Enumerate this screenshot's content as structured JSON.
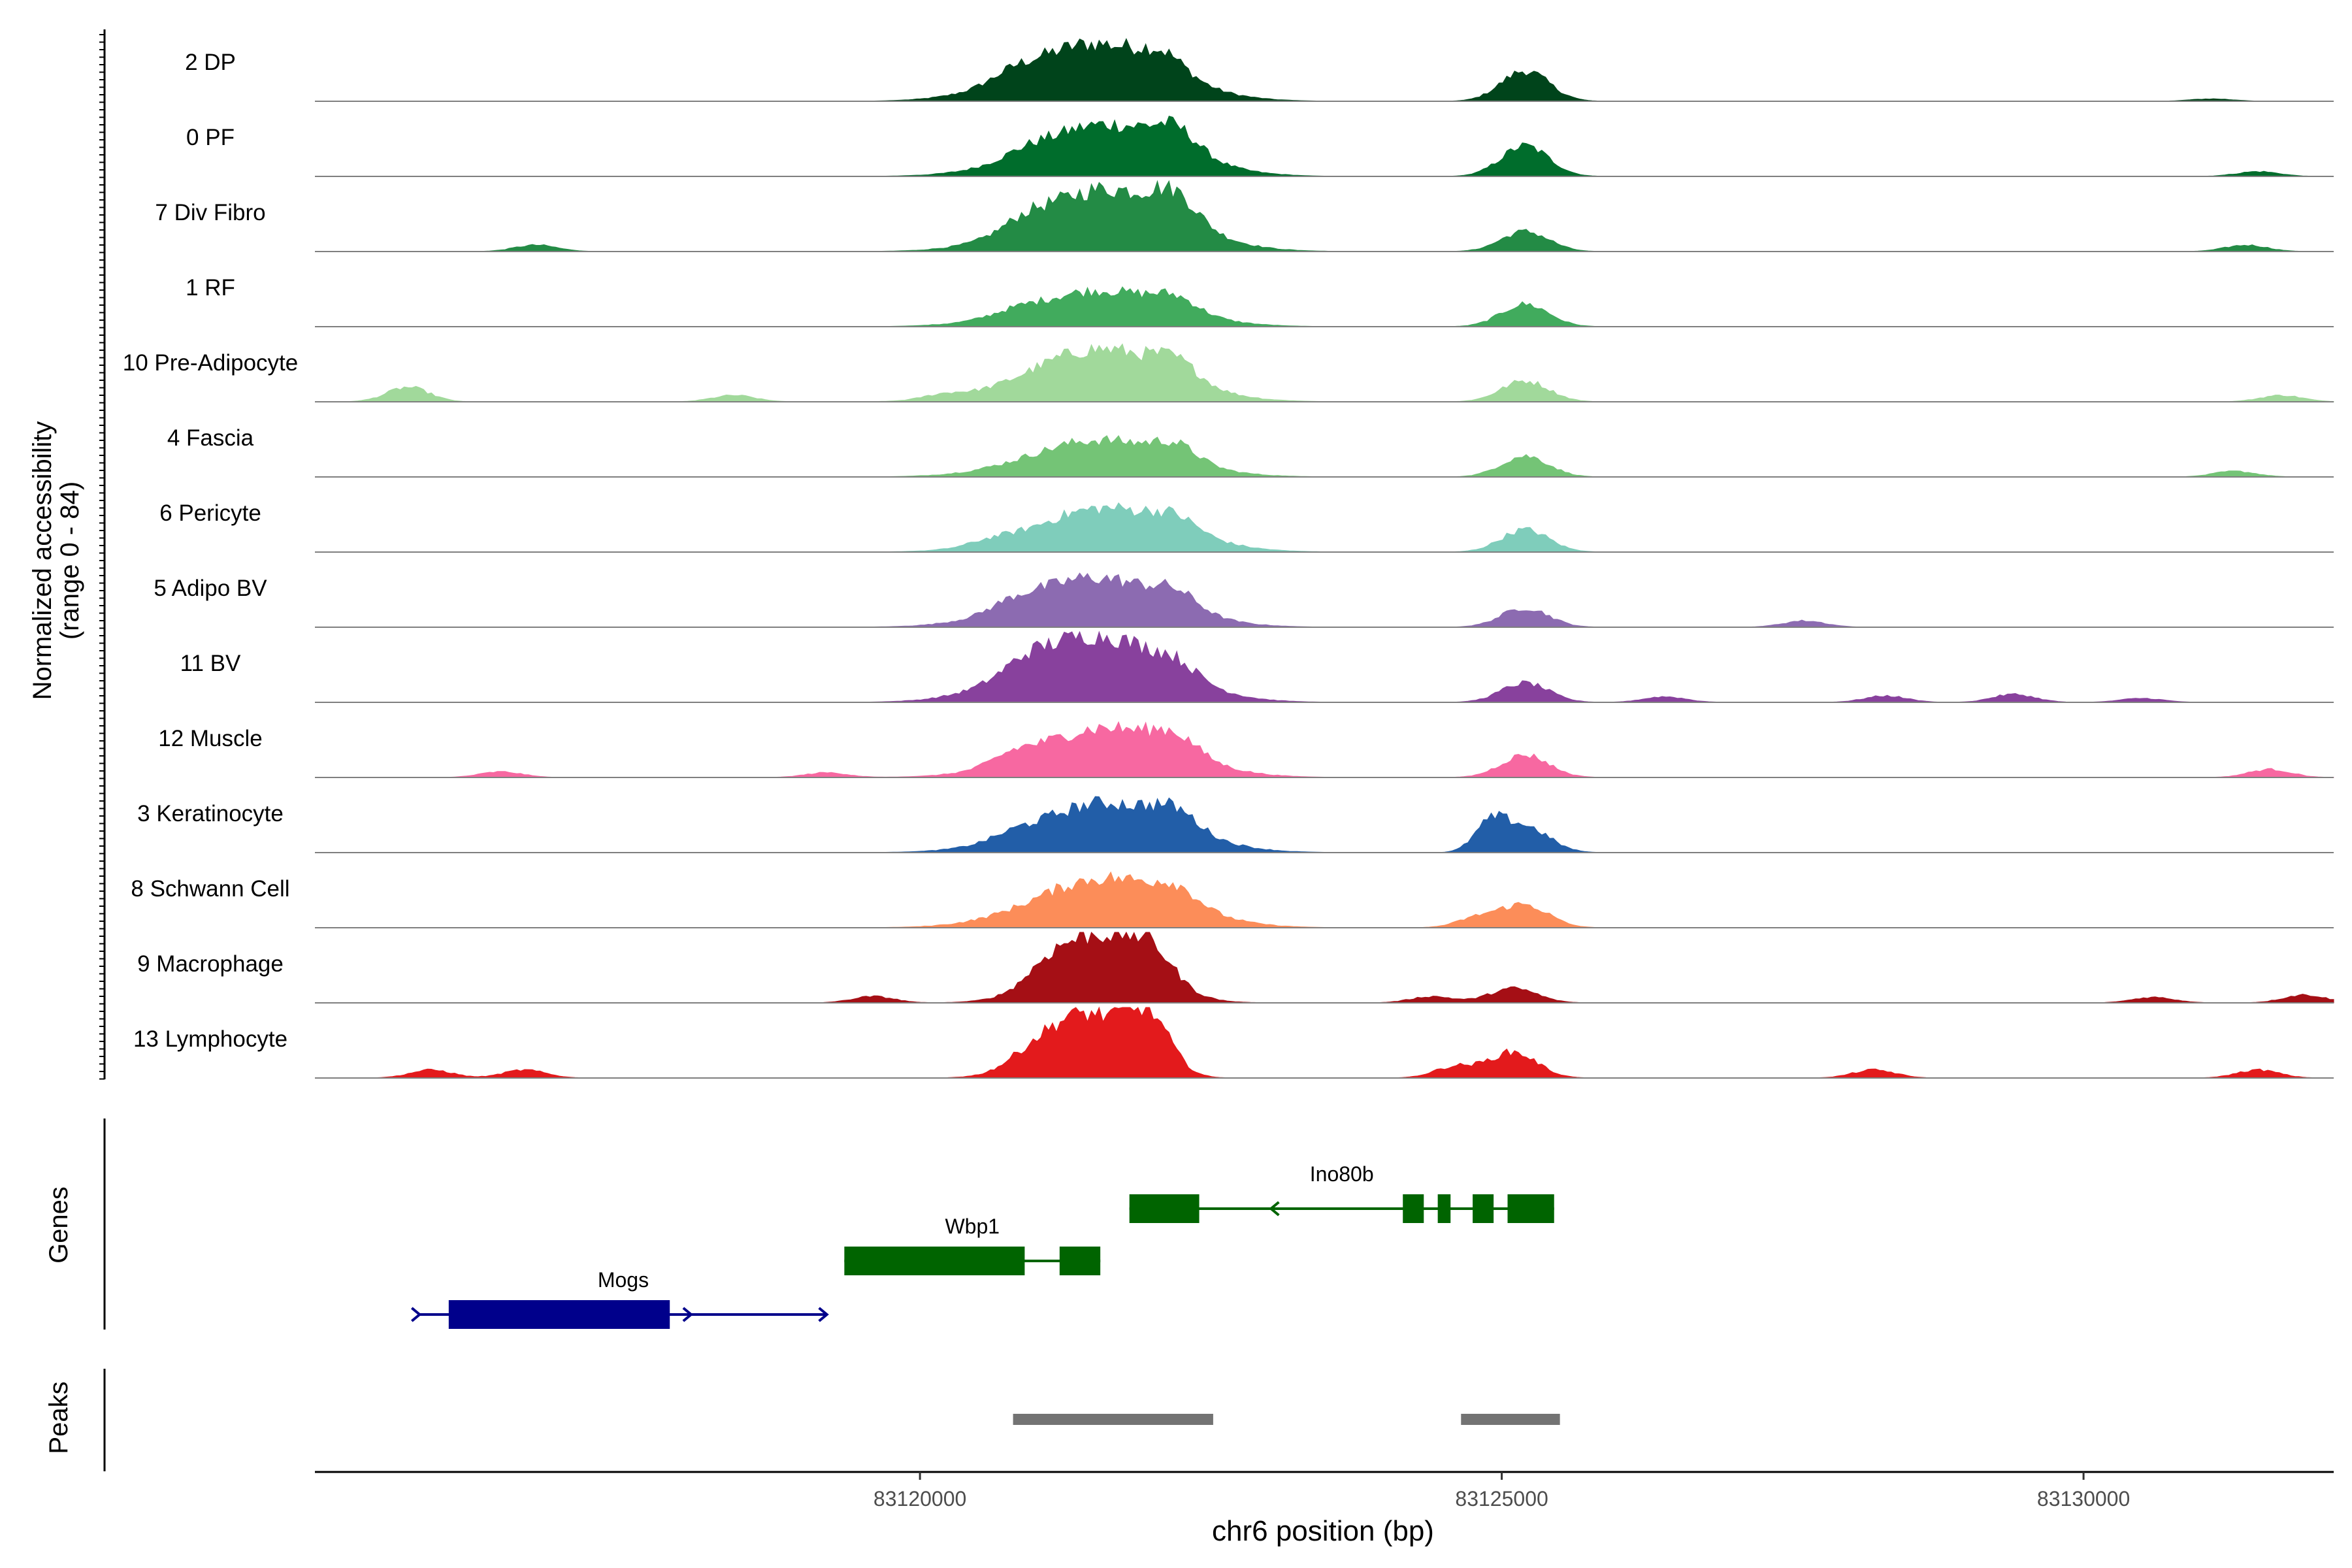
{
  "chart_data": {
    "type": "area",
    "title": "",
    "xlabel": "chr6 position (bp)",
    "ylabel": "Normalized accessibility",
    "ylabel_range": "(range 0 - 84)",
    "xlim": [
      83114800,
      83132150
    ],
    "ylim": [
      0,
      84
    ],
    "x_ticks": [
      {
        "value": 83120000,
        "label": "83120000"
      },
      {
        "value": 83125000,
        "label": "83125000"
      },
      {
        "value": 83130000,
        "label": "83130000"
      }
    ],
    "tracks": [
      {
        "name": "2 DP",
        "color": "#00441b",
        "peaks": [
          [
            83121500,
            72,
            1300
          ],
          [
            83125200,
            38,
            450
          ],
          [
            83122100,
            20,
            400
          ]
        ],
        "minor": [
          [
            83120800,
            8,
            400
          ],
          [
            83131100,
            3,
            400
          ]
        ]
      },
      {
        "name": "0 PF",
        "color": "#006d2c",
        "peaks": [
          [
            83121600,
            65,
            1300
          ],
          [
            83125200,
            38,
            450
          ],
          [
            83122200,
            25,
            400
          ]
        ],
        "minor": [
          [
            83120900,
            6,
            400
          ],
          [
            83131500,
            6,
            400
          ]
        ]
      },
      {
        "name": "7 Div Fibro",
        "color": "#238b45",
        "peaks": [
          [
            83121600,
            78,
            1300
          ],
          [
            83125200,
            25,
            450
          ],
          [
            83122200,
            30,
            400
          ]
        ],
        "minor": [
          [
            83116700,
            8,
            400
          ],
          [
            83120900,
            10,
            400
          ],
          [
            83131400,
            8,
            400
          ]
        ]
      },
      {
        "name": "1 RF",
        "color": "#41ab5d",
        "peaks": [
          [
            83121550,
            45,
            1300
          ],
          [
            83125200,
            28,
            450
          ],
          [
            83122200,
            15,
            400
          ]
        ],
        "minor": [
          [
            83120800,
            4,
            400
          ]
        ]
      },
      {
        "name": "10 Pre-Adipocyte",
        "color": "#a1d99b",
        "peaks": [
          [
            83121550,
            66,
            1300
          ],
          [
            83125200,
            26,
            450
          ],
          [
            83122200,
            20,
            400
          ]
        ],
        "minor": [
          [
            83115600,
            18,
            400
          ],
          [
            83118400,
            8,
            400
          ],
          [
            83120200,
            6,
            400
          ],
          [
            83131700,
            8,
            400
          ]
        ]
      },
      {
        "name": "4 Fascia",
        "color": "#74c476",
        "peaks": [
          [
            83121550,
            46,
            1300
          ],
          [
            83125200,
            26,
            450
          ],
          [
            83122200,
            18,
            400
          ]
        ],
        "minor": [
          [
            83131300,
            7,
            400
          ]
        ]
      },
      {
        "name": "6 Pericyte",
        "color": "#7fcdbb",
        "peaks": [
          [
            83121600,
            55,
            1300
          ],
          [
            83125200,
            28,
            450
          ],
          [
            83122200,
            15,
            400
          ]
        ],
        "minor": [
          [
            83120600,
            5,
            400
          ]
        ]
      },
      {
        "name": "5 Adipo BV",
        "color": "#8c6bb1",
        "peaks": [
          [
            83121500,
            62,
            1300
          ],
          [
            83125200,
            24,
            450
          ],
          [
            83122200,
            18,
            400
          ]
        ],
        "minor": [
          [
            83120800,
            8,
            400
          ],
          [
            83127600,
            8,
            400
          ]
        ]
      },
      {
        "name": "11 BV",
        "color": "#88419d",
        "peaks": [
          [
            83121500,
            84,
            1300
          ],
          [
            83125200,
            24,
            450
          ],
          [
            83122200,
            15,
            400
          ]
        ],
        "minor": [
          [
            83120900,
            10,
            400
          ],
          [
            83129400,
            10,
            400
          ],
          [
            83128300,
            8,
            400
          ],
          [
            83126400,
            7,
            400
          ],
          [
            83130500,
            5,
            400
          ]
        ]
      },
      {
        "name": "12 Muscle",
        "color": "#f768a1",
        "peaks": [
          [
            83121600,
            62,
            1300
          ],
          [
            83125200,
            28,
            450
          ],
          [
            83122200,
            20,
            400
          ]
        ],
        "minor": [
          [
            83120800,
            10,
            400
          ],
          [
            83116400,
            7,
            400
          ],
          [
            83131600,
            10,
            400
          ],
          [
            83119200,
            6,
            400
          ]
        ]
      },
      {
        "name": "3 Keratinocyte",
        "color": "#225ea8",
        "peaks": [
          [
            83121600,
            62,
            1300
          ],
          [
            83125200,
            32,
            450
          ],
          [
            83124900,
            32,
            300
          ],
          [
            83122200,
            20,
            400
          ]
        ],
        "minor": [
          [
            83120800,
            5,
            400
          ]
        ]
      },
      {
        "name": "8 Schwann Cell",
        "color": "#fc8d59",
        "peaks": [
          [
            83121600,
            62,
            1300
          ],
          [
            83125200,
            28,
            450
          ],
          [
            83122200,
            18,
            400
          ]
        ],
        "minor": [
          [
            83124800,
            12,
            400
          ]
        ]
      },
      {
        "name": "9 Macrophage",
        "color": "#a50f15",
        "peaks": [
          [
            83121550,
            84,
            900
          ],
          [
            83125100,
            18,
            450
          ],
          [
            83122000,
            30,
            400
          ],
          [
            83121100,
            15,
            400
          ]
        ],
        "minor": [
          [
            83119600,
            8,
            400
          ],
          [
            83124400,
            8,
            400
          ],
          [
            83131900,
            10,
            400
          ],
          [
            83130600,
            7,
            400
          ]
        ]
      },
      {
        "name": "13 Lymphocyte",
        "color": "#e31a1c",
        "peaks": [
          [
            83121400,
            80,
            800
          ],
          [
            83125100,
            32,
            450
          ],
          [
            83122000,
            40,
            400
          ],
          [
            83121900,
            25,
            400
          ],
          [
            83124600,
            14,
            400
          ]
        ],
        "minor": [
          [
            83115800,
            10,
            400
          ],
          [
            83116600,
            10,
            400
          ],
          [
            83128200,
            10,
            400
          ],
          [
            83131500,
            10,
            400
          ],
          [
            83120900,
            8,
            400
          ]
        ]
      }
    ],
    "genes": [
      {
        "name": "Ino80b",
        "strand": "-",
        "color": "#006400",
        "row": 0,
        "start": 83121800,
        "end": 83125450,
        "exons": [
          [
            83121800,
            83122400
          ],
          [
            83124150,
            83124330
          ],
          [
            83124450,
            83124560
          ],
          [
            83124750,
            83124930
          ],
          [
            83125050,
            83125450
          ]
        ]
      },
      {
        "name": "Wbp1",
        "strand": "-",
        "color": "#006400",
        "row": 1,
        "start": 83119350,
        "end": 83121550,
        "exons": [
          [
            83119350,
            83120350
          ],
          [
            83120200,
            83120900
          ],
          [
            83121200,
            83121550
          ]
        ]
      },
      {
        "name": "Mogs",
        "strand": "+",
        "color": "#00008b",
        "row": 2,
        "start": 83115700,
        "end": 83119200,
        "exons": [
          [
            83115950,
            83117850
          ]
        ]
      }
    ],
    "peaks": [
      [
        83120800,
        83122520
      ],
      [
        83124650,
        83125500
      ]
    ],
    "panel_labels": {
      "genes": "Genes",
      "peaks": "Peaks"
    }
  }
}
